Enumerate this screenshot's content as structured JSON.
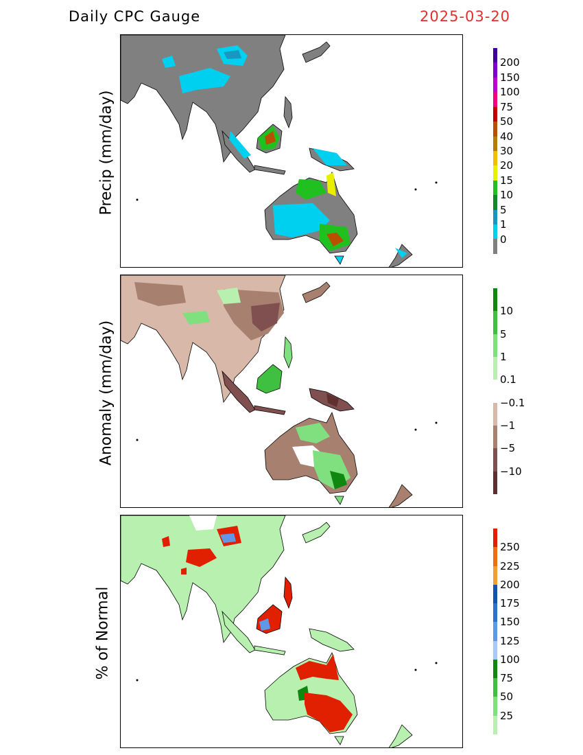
{
  "header": {
    "title": "Daily CPC Gauge",
    "date": "2025-03-20",
    "date_color": "#e03030"
  },
  "panels": [
    {
      "id": "precip",
      "ylabel": "Precip (mm/day)",
      "colorbar": {
        "colors": [
          "#808080",
          "#00d0f0",
          "#1898c0",
          "#108828",
          "#20c020",
          "#e8f000",
          "#f0c000",
          "#b08000",
          "#b85000",
          "#c00000",
          "#f00080",
          "#c000d0",
          "#8000d0",
          "#4000a0"
        ],
        "labels": [
          "0",
          "1",
          "5",
          "10",
          "15",
          "20",
          "30",
          "40",
          "50",
          "75",
          "100",
          "150",
          "200"
        ]
      }
    },
    {
      "id": "anomaly",
      "ylabel": "Anomaly (mm/day)",
      "colorbar": {
        "colors": [
          "#603030",
          "#805050",
          "#a88070",
          "#d8b8a8",
          "#ffffff",
          "#b8f0b0",
          "#80e080",
          "#40c040",
          "#108810"
        ],
        "labels": [
          "−10",
          "−5",
          "−1",
          "−0.1",
          "0.1",
          "1",
          "5",
          "10"
        ]
      }
    },
    {
      "id": "percent",
      "ylabel": "% of Normal",
      "colorbar": {
        "colors": [
          "#b8f0b0",
          "#80e080",
          "#40c040",
          "#108810",
          "#a8c8f8",
          "#6098e8",
          "#3070d0",
          "#1850b0",
          "#f0a030",
          "#f07010",
          "#e02000"
        ],
        "labels": [
          "25",
          "50",
          "75",
          "100",
          "125",
          "150",
          "175",
          "200",
          "225",
          "250"
        ]
      }
    }
  ]
}
